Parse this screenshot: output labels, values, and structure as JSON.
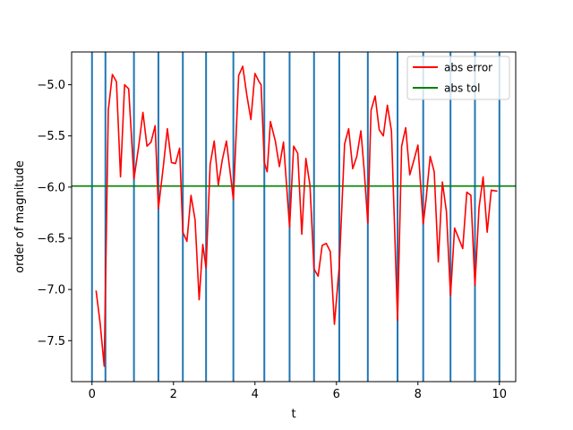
{
  "chart_data": {
    "type": "line",
    "title": "",
    "xlabel": "t",
    "ylabel": "order of magnitude",
    "xlim": [
      -0.5,
      10.4
    ],
    "ylim": [
      -7.9,
      -4.68
    ],
    "grid": false,
    "legend_position": "top-right",
    "x_ticks": [
      0,
      2,
      4,
      6,
      8,
      10
    ],
    "x_tick_labels": [
      "0",
      "2",
      "4",
      "6",
      "8",
      "10"
    ],
    "y_ticks": [
      -7.5,
      -7.0,
      -6.5,
      -6.0,
      -5.5,
      -5.0
    ],
    "y_tick_labels": [
      "−7.5",
      "−7.0",
      "−6.5",
      "−6.0",
      "−5.5",
      "−5.0"
    ],
    "vertical_lines": {
      "color": "#1f77b4",
      "x": [
        0.0,
        0.33,
        1.03,
        1.63,
        2.23,
        2.8,
        3.47,
        4.23,
        4.85,
        5.45,
        6.07,
        6.77,
        7.5,
        8.13,
        8.8,
        9.4,
        10.0
      ]
    },
    "series": [
      {
        "name": "abs error",
        "color": "#ff0000",
        "x": [
          0.1,
          0.2,
          0.3,
          0.4,
          0.5,
          0.6,
          0.7,
          0.8,
          0.9,
          1.03,
          1.15,
          1.25,
          1.35,
          1.45,
          1.55,
          1.63,
          1.75,
          1.85,
          1.95,
          2.05,
          2.15,
          2.23,
          2.33,
          2.43,
          2.53,
          2.63,
          2.72,
          2.8,
          2.9,
          3.0,
          3.1,
          3.2,
          3.3,
          3.47,
          3.6,
          3.7,
          3.8,
          3.9,
          4.0,
          4.1,
          4.15,
          4.23,
          4.3,
          4.38,
          4.5,
          4.6,
          4.7,
          4.85,
          4.95,
          5.05,
          5.15,
          5.25,
          5.35,
          5.45,
          5.55,
          5.65,
          5.75,
          5.85,
          5.95,
          6.07,
          6.2,
          6.3,
          6.4,
          6.5,
          6.6,
          6.68,
          6.77,
          6.85,
          6.95,
          7.05,
          7.15,
          7.25,
          7.35,
          7.5,
          7.6,
          7.7,
          7.8,
          7.9,
          8.0,
          8.13,
          8.2,
          8.3,
          8.4,
          8.5,
          8.6,
          8.7,
          8.8,
          8.9,
          9.0,
          9.1,
          9.2,
          9.3,
          9.4,
          9.5,
          9.6,
          9.7,
          9.8,
          9.95
        ],
        "y": [
          -7.01,
          -7.33,
          -7.75,
          -5.25,
          -4.9,
          -4.97,
          -5.9,
          -5.0,
          -5.04,
          -5.92,
          -5.59,
          -5.27,
          -5.6,
          -5.56,
          -5.4,
          -6.21,
          -5.8,
          -5.43,
          -5.76,
          -5.77,
          -5.62,
          -6.44,
          -6.53,
          -6.08,
          -6.32,
          -7.1,
          -6.56,
          -6.79,
          -5.78,
          -5.55,
          -5.98,
          -5.73,
          -5.55,
          -6.12,
          -4.91,
          -4.82,
          -5.1,
          -5.34,
          -4.89,
          -4.97,
          -5.0,
          -5.76,
          -5.85,
          -5.36,
          -5.55,
          -5.8,
          -5.56,
          -6.39,
          -5.6,
          -5.67,
          -6.46,
          -5.72,
          -5.98,
          -6.8,
          -6.87,
          -6.57,
          -6.55,
          -6.63,
          -7.34,
          -6.77,
          -5.58,
          -5.43,
          -5.82,
          -5.7,
          -5.45,
          -5.83,
          -6.35,
          -5.25,
          -5.11,
          -5.44,
          -5.5,
          -5.2,
          -5.45,
          -7.3,
          -5.6,
          -5.42,
          -5.88,
          -5.74,
          -5.59,
          -6.36,
          -6.12,
          -5.7,
          -5.85,
          -6.73,
          -5.95,
          -6.24,
          -7.06,
          -6.4,
          -6.5,
          -6.6,
          -6.05,
          -6.08,
          -6.96,
          -6.2,
          -5.9,
          -6.44,
          -6.03,
          -6.04
        ]
      },
      {
        "name": "abs tol",
        "color": "#008000",
        "x": [
          -0.5,
          10.4
        ],
        "y": [
          -5.99,
          -5.99
        ]
      }
    ]
  }
}
